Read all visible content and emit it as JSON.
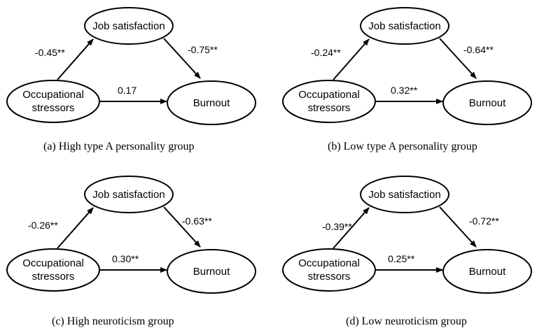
{
  "nodes": {
    "mediator": "Job satisfaction",
    "predictor_line1": "Occupational",
    "predictor_line2": "stressors",
    "outcome": "Burnout"
  },
  "panels": [
    {
      "caption": "(a) High type A personality group",
      "a_path": "-0.45**",
      "b_path": "-0.75**",
      "c_path": "0.17"
    },
    {
      "caption": "(b) Low type A personality group",
      "a_path": "-0.24**",
      "b_path": "-0.64**",
      "c_path": "0.32**"
    },
    {
      "caption": "(c) High neuroticism group",
      "a_path": "-0.26**",
      "b_path": "-0.63**",
      "c_path": "0.30**"
    },
    {
      "caption": "(d) Low neuroticism group",
      "a_path": "-0.39**",
      "b_path": "-0.72**",
      "c_path": "0.25**"
    }
  ]
}
